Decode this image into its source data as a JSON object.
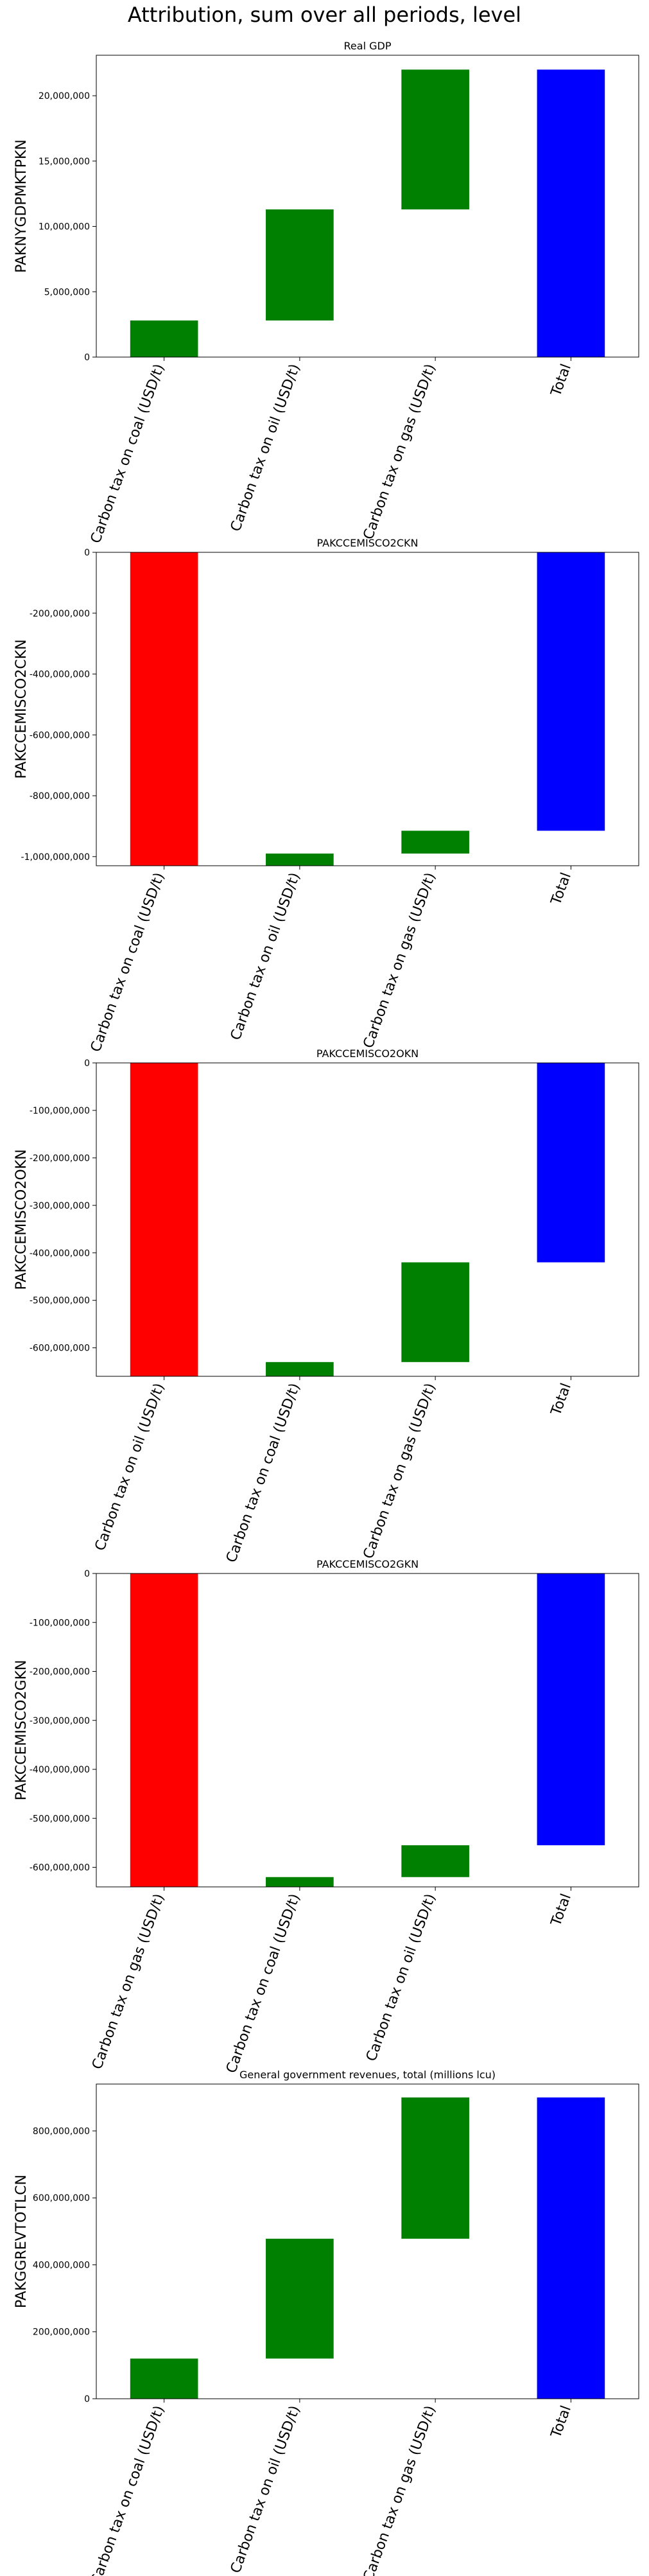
{
  "figure": {
    "suptitle": "Attribution, sum over all periods, level"
  },
  "colors": {
    "positive": "#008000",
    "negative": "#ff0000",
    "total": "#0000ff"
  },
  "chart_data": [
    {
      "type": "bar",
      "subtype": "waterfall",
      "title": "Real GDP",
      "ylabel": "PAKNYGDPMKTPKN",
      "categories": [
        "Carbon tax on coal (USD/t)",
        "Carbon tax on oil (USD/t)",
        "Carbon tax on gas (USD/t)",
        "Total"
      ],
      "bars": [
        {
          "bottom": 0,
          "top": 2800000,
          "color": "#008000"
        },
        {
          "bottom": 2800000,
          "top": 11300000,
          "color": "#008000"
        },
        {
          "bottom": 11300000,
          "top": 22000000,
          "color": "#008000"
        },
        {
          "bottom": 0,
          "top": 22000000,
          "color": "#0000ff"
        }
      ],
      "ylim": [
        0,
        23100000
      ],
      "yticks": [
        0,
        5000000,
        10000000,
        15000000,
        20000000
      ],
      "ytick_labels": [
        "0",
        "5,000,000",
        "10,000,000",
        "15,000,000",
        "20,000,000"
      ]
    },
    {
      "type": "bar",
      "subtype": "waterfall",
      "title": "PAKCCEMISCO2CKN",
      "ylabel": "PAKCCEMISCO2CKN",
      "categories": [
        "Carbon tax on coal (USD/t)",
        "Carbon tax on oil (USD/t)",
        "Carbon tax on gas (USD/t)",
        "Total"
      ],
      "bars": [
        {
          "bottom": 0,
          "top": -1030000000,
          "color": "#ff0000"
        },
        {
          "bottom": -1030000000,
          "top": -990000000,
          "color": "#008000"
        },
        {
          "bottom": -990000000,
          "top": -915000000,
          "color": "#008000"
        },
        {
          "bottom": 0,
          "top": -915000000,
          "color": "#0000ff"
        }
      ],
      "ylim": [
        -1030000000,
        0
      ],
      "yticks": [
        0,
        -200000000,
        -400000000,
        -600000000,
        -800000000,
        -1000000000
      ],
      "ytick_labels": [
        "0",
        "-200,000,000",
        "-400,000,000",
        "-600,000,000",
        "-800,000,000",
        "-1,000,000,000"
      ]
    },
    {
      "type": "bar",
      "subtype": "waterfall",
      "title": "PAKCCEMISCO2OKN",
      "ylabel": "PAKCCEMISCO2OKN",
      "categories": [
        "Carbon tax on oil (USD/t)",
        "Carbon tax on coal (USD/t)",
        "Carbon tax on gas (USD/t)",
        "Total"
      ],
      "bars": [
        {
          "bottom": 0,
          "top": -660000000,
          "color": "#ff0000"
        },
        {
          "bottom": -660000000,
          "top": -630000000,
          "color": "#008000"
        },
        {
          "bottom": -630000000,
          "top": -420000000,
          "color": "#008000"
        },
        {
          "bottom": 0,
          "top": -420000000,
          "color": "#0000ff"
        }
      ],
      "ylim": [
        -660000000,
        0
      ],
      "yticks": [
        0,
        -100000000,
        -200000000,
        -300000000,
        -400000000,
        -500000000,
        -600000000
      ],
      "ytick_labels": [
        "0",
        "-100,000,000",
        "-200,000,000",
        "-300,000,000",
        "-400,000,000",
        "-500,000,000",
        "-600,000,000"
      ]
    },
    {
      "type": "bar",
      "subtype": "waterfall",
      "title": "PAKCCEMISCO2GKN",
      "ylabel": "PAKCCEMISCO2GKN",
      "categories": [
        "Carbon tax on gas (USD/t)",
        "Carbon tax on coal (USD/t)",
        "Carbon tax on oil (USD/t)",
        "Total"
      ],
      "bars": [
        {
          "bottom": 0,
          "top": -640000000,
          "color": "#ff0000"
        },
        {
          "bottom": -640000000,
          "top": -620000000,
          "color": "#008000"
        },
        {
          "bottom": -620000000,
          "top": -555000000,
          "color": "#008000"
        },
        {
          "bottom": 0,
          "top": -555000000,
          "color": "#0000ff"
        }
      ],
      "ylim": [
        -640000000,
        0
      ],
      "yticks": [
        0,
        -100000000,
        -200000000,
        -300000000,
        -400000000,
        -500000000,
        -600000000
      ],
      "ytick_labels": [
        "0",
        "-100,000,000",
        "-200,000,000",
        "-300,000,000",
        "-400,000,000",
        "-500,000,000",
        "-600,000,000"
      ]
    },
    {
      "type": "bar",
      "subtype": "waterfall",
      "title": "General government revenues, total (millions lcu)",
      "ylabel": "PAKGGREVTOTLCN",
      "categories": [
        "Carbon tax on coal (USD/t)",
        "Carbon tax on oil (USD/t)",
        "Carbon tax on gas (USD/t)",
        "Total"
      ],
      "bars": [
        {
          "bottom": 0,
          "top": 120000000,
          "color": "#008000"
        },
        {
          "bottom": 120000000,
          "top": 478000000,
          "color": "#008000"
        },
        {
          "bottom": 478000000,
          "top": 900000000,
          "color": "#008000"
        },
        {
          "bottom": 0,
          "top": 900000000,
          "color": "#0000ff"
        }
      ],
      "ylim": [
        0,
        940000000
      ],
      "yticks": [
        0,
        200000000,
        400000000,
        600000000,
        800000000
      ],
      "ytick_labels": [
        "0",
        "200,000,000",
        "400,000,000",
        "600,000,000",
        "800,000,000"
      ]
    }
  ]
}
